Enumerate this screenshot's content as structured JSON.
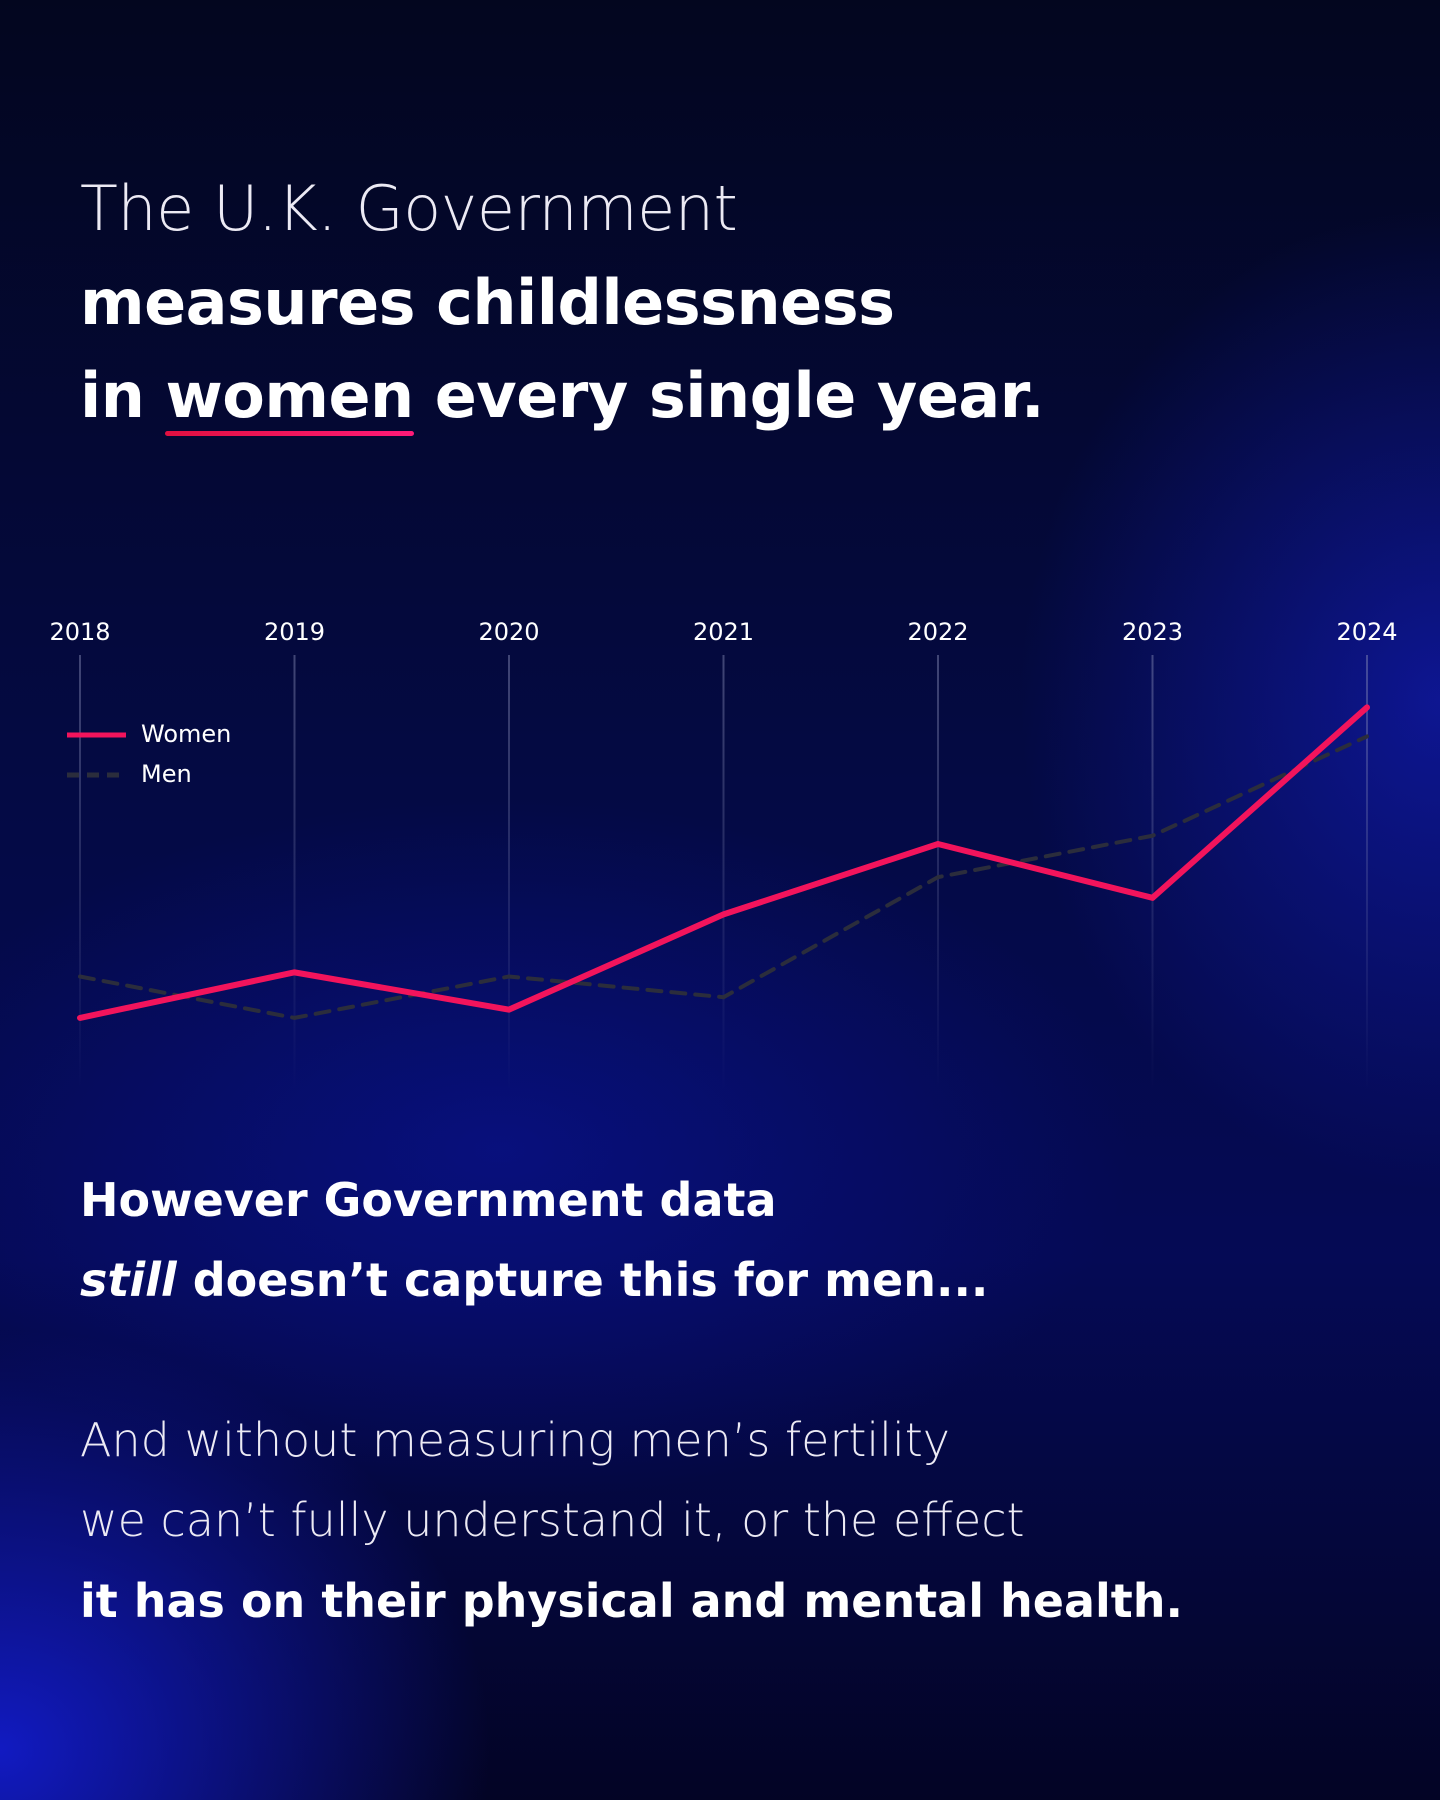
{
  "headline": {
    "line1": "The U.K. Government",
    "line2": "measures childlessness",
    "line3": {
      "before": "in",
      "emphasis": "women",
      "after": "every single year."
    }
  },
  "chart_data": {
    "type": "line",
    "categories": [
      "2018",
      "2019",
      "2020",
      "2021",
      "2022",
      "2023",
      "2024"
    ],
    "series": [
      {
        "name": "Women",
        "color": "#f2145c",
        "style": "solid",
        "values": [
          15,
          26,
          17,
          40,
          57,
          44,
          90
        ]
      },
      {
        "name": "Men",
        "color": "#2b2d3c",
        "style": "dashed",
        "values": [
          25,
          15,
          25,
          20,
          49,
          59,
          83
        ]
      }
    ],
    "ylim": [
      0,
      100
    ],
    "grid": true,
    "legend": "top-left"
  },
  "body": {
    "para1": {
      "line1": "However Government data",
      "line2": {
        "emphasis": "still",
        "rest": "doesn’t capture this for men..."
      }
    },
    "para2": {
      "line1": "And without measuring men’s fertility",
      "line2": "we can’t fully understand it, or the effect",
      "line3": "it has on their physical and mental health."
    }
  }
}
